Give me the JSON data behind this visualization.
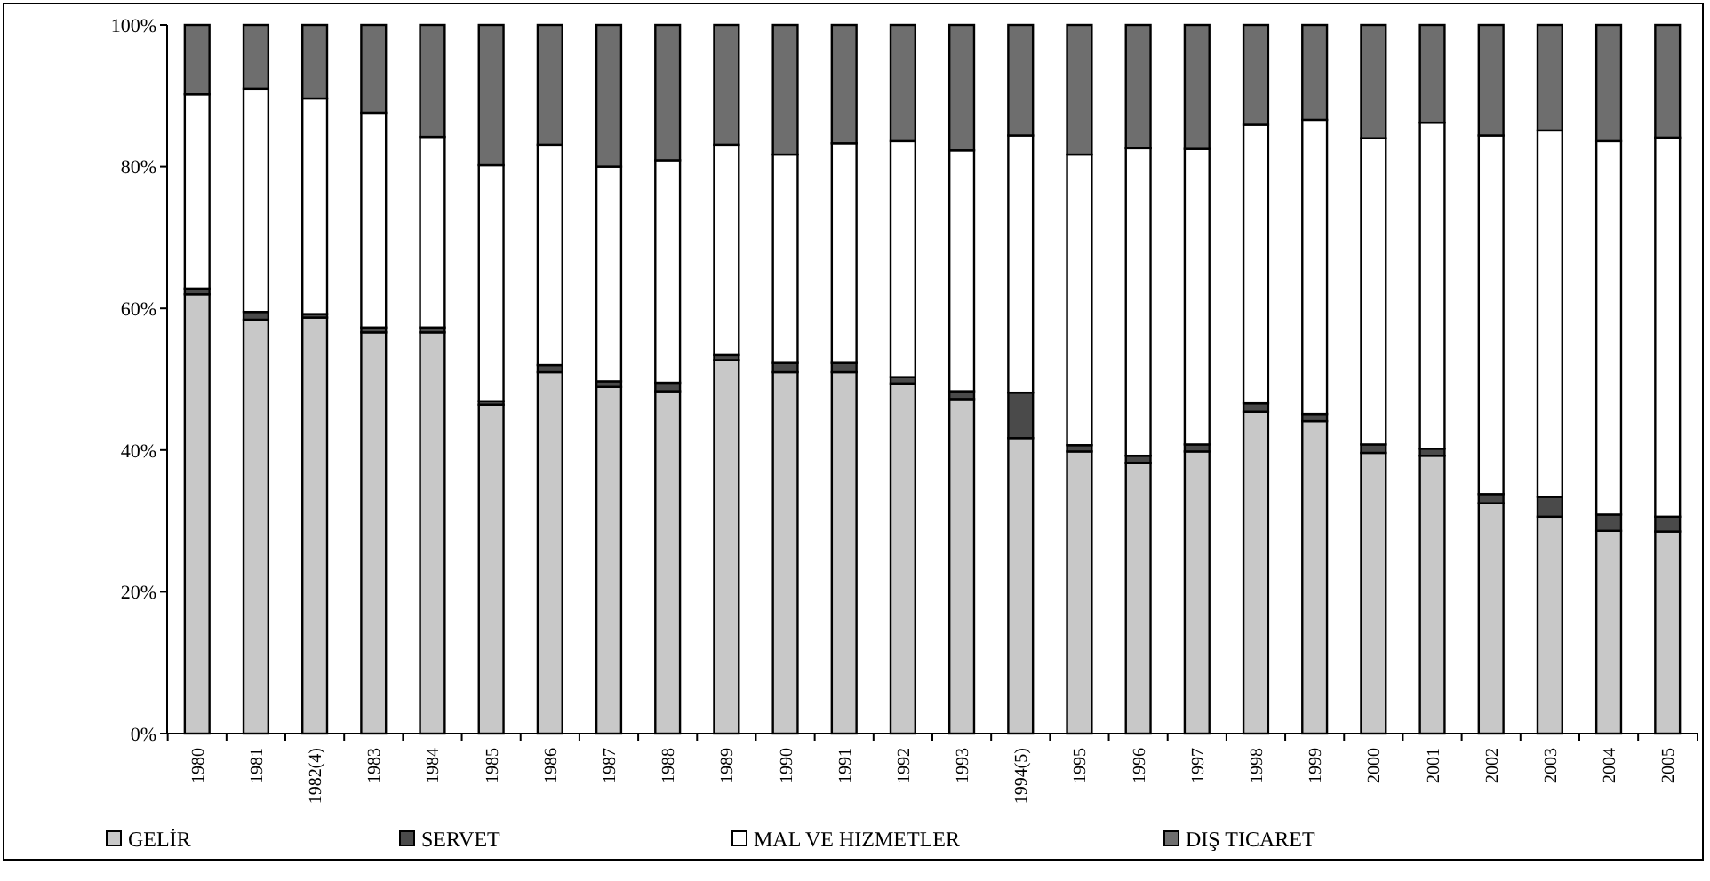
{
  "chart_data": {
    "type": "bar",
    "stacked": true,
    "legend": "bottom",
    "categories": [
      "1980",
      "1981",
      "1982(4)",
      "1983",
      "1984",
      "1985",
      "1986",
      "1987",
      "1988",
      "1989",
      "1990",
      "1991",
      "1992",
      "1993",
      "1994(5)",
      "1995",
      "1996",
      "1997",
      "1998",
      "1999",
      "2000",
      "2001",
      "2002",
      "2003",
      "2004",
      "2005"
    ],
    "ylim": [
      0,
      100
    ],
    "yticks": [
      {
        "value": 0,
        "label": "0%"
      },
      {
        "value": 20,
        "label": "20%"
      },
      {
        "value": 40,
        "label": "40%"
      },
      {
        "value": 60,
        "label": "60%"
      },
      {
        "value": 80,
        "label": "80%"
      },
      {
        "value": 100,
        "label": "100%"
      }
    ],
    "series": [
      {
        "name": "GELİR",
        "color": "#c8c8c8",
        "values": [
          62.0,
          58.4,
          58.7,
          56.6,
          56.6,
          46.4,
          51.0,
          48.9,
          48.3,
          52.7,
          51.0,
          51.0,
          49.4,
          47.2,
          41.7,
          39.8,
          38.2,
          39.8,
          45.4,
          44.1,
          39.6,
          39.2,
          32.5,
          30.6,
          28.6,
          28.5
        ]
      },
      {
        "name": "SERVET",
        "color": "#4a4a4a",
        "values": [
          0.8,
          1.1,
          0.5,
          0.7,
          0.7,
          0.5,
          1.0,
          0.8,
          1.2,
          0.7,
          1.3,
          1.3,
          0.9,
          1.1,
          6.4,
          0.9,
          1.0,
          1.0,
          1.2,
          1.0,
          1.2,
          1.0,
          1.3,
          2.8,
          2.3,
          2.1
        ]
      },
      {
        "name": "MAL VE HIZMETLER",
        "color": "#ffffff",
        "values": [
          27.4,
          31.5,
          30.4,
          30.3,
          26.9,
          33.3,
          31.1,
          30.3,
          31.4,
          29.7,
          29.4,
          31.0,
          33.3,
          34.0,
          36.3,
          41.0,
          43.4,
          41.7,
          39.3,
          41.5,
          43.2,
          46.0,
          50.6,
          51.7,
          52.7,
          53.5
        ]
      },
      {
        "name": "DIŞ TICARET",
        "color": "#6e6e6e",
        "values": [
          9.8,
          9.0,
          10.4,
          12.4,
          15.8,
          19.8,
          16.9,
          20.0,
          19.1,
          16.9,
          18.3,
          16.7,
          16.4,
          17.7,
          15.6,
          18.3,
          17.4,
          17.5,
          14.1,
          13.4,
          16.0,
          13.8,
          15.6,
          14.9,
          16.4,
          15.9
        ]
      }
    ]
  }
}
